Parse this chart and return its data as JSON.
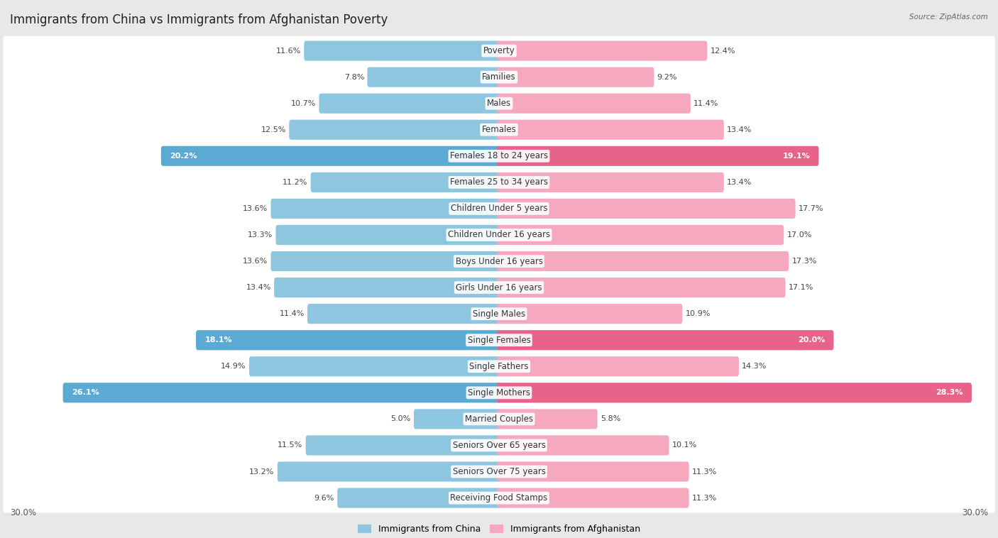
{
  "title": "Immigrants from China vs Immigrants from Afghanistan Poverty",
  "source": "Source: ZipAtlas.com",
  "categories": [
    "Poverty",
    "Families",
    "Males",
    "Females",
    "Females 18 to 24 years",
    "Females 25 to 34 years",
    "Children Under 5 years",
    "Children Under 16 years",
    "Boys Under 16 years",
    "Girls Under 16 years",
    "Single Males",
    "Single Females",
    "Single Fathers",
    "Single Mothers",
    "Married Couples",
    "Seniors Over 65 years",
    "Seniors Over 75 years",
    "Receiving Food Stamps"
  ],
  "china_values": [
    11.6,
    7.8,
    10.7,
    12.5,
    20.2,
    11.2,
    13.6,
    13.3,
    13.6,
    13.4,
    11.4,
    18.1,
    14.9,
    26.1,
    5.0,
    11.5,
    13.2,
    9.6
  ],
  "afghanistan_values": [
    12.4,
    9.2,
    11.4,
    13.4,
    19.1,
    13.4,
    17.7,
    17.0,
    17.3,
    17.1,
    10.9,
    20.0,
    14.3,
    28.3,
    5.8,
    10.1,
    11.3,
    11.3
  ],
  "china_color_normal": "#8ec6e0",
  "china_color_highlight": "#5aaad4",
  "afghanistan_color_normal": "#f5a8be",
  "afghanistan_color_highlight": "#e8638a",
  "highlight_threshold": 18.0,
  "axis_max": 30.0,
  "background_color": "#e8e8e8",
  "row_bg_even": "#ffffff",
  "row_bg_odd": "#f0f0f0",
  "label_fontsize": 8.5,
  "title_fontsize": 12,
  "value_fontsize": 8,
  "legend_china": "Immigrants from China",
  "legend_afghanistan": "Immigrants from Afghanistan",
  "axis_label_left": "30.0%",
  "axis_label_right": "30.0%"
}
